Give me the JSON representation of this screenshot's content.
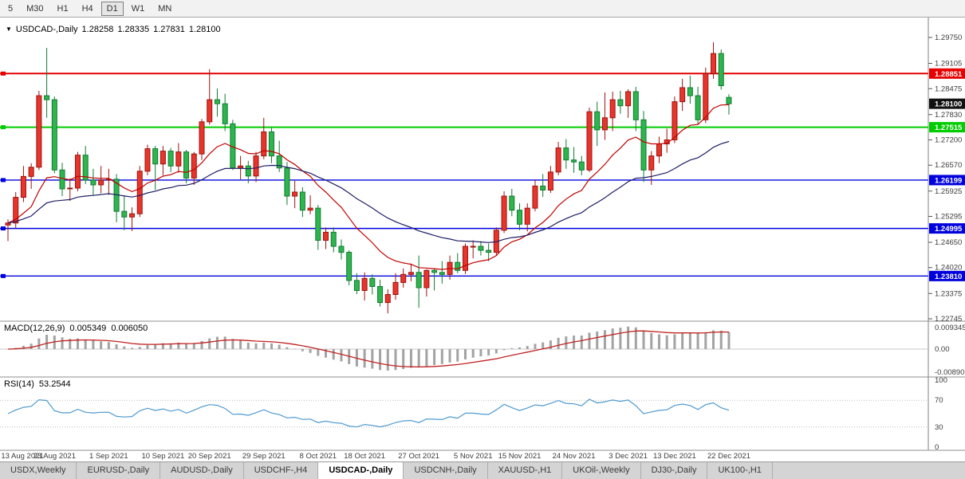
{
  "toolbar": {
    "timeframes": [
      {
        "label": "5",
        "active": false
      },
      {
        "label": "M30",
        "active": false
      },
      {
        "label": "H1",
        "active": false
      },
      {
        "label": "H4",
        "active": false
      },
      {
        "label": "D1",
        "active": true
      },
      {
        "label": "W1",
        "active": false
      },
      {
        "label": "MN",
        "active": false
      }
    ]
  },
  "header": {
    "collapse_icon": "▼",
    "symbol": "USDCAD-,Daily",
    "open": "1.28258",
    "high": "1.28335",
    "low": "1.27831",
    "close": "1.28100"
  },
  "price_scale": {
    "ticks": [
      "1.29750",
      "1.29105",
      "1.28475",
      "1.27830",
      "1.27200",
      "1.26570",
      "1.25925",
      "1.25295",
      "1.24650",
      "1.24020",
      "1.23375",
      "1.22745"
    ]
  },
  "price_lines": [
    {
      "value": "1.28851",
      "color": "#e60000",
      "width": 2
    },
    {
      "value": "1.27515",
      "color": "#00cc00",
      "width": 2
    },
    {
      "value": "1.26199",
      "color": "#0000dd",
      "width": 1.4
    },
    {
      "value": "1.24995",
      "color": "#0000dd",
      "width": 1.4
    },
    {
      "value": "1.23810",
      "color": "#0000dd",
      "width": 1.4
    }
  ],
  "current_price": {
    "value": "1.28100",
    "color": "#111111"
  },
  "indicators": {
    "macd": {
      "label": "MACD(12,26,9)",
      "value_main": "0.005349",
      "value_signal": "0.006050",
      "scale": [
        "0.0093450",
        "0.00",
        "-0.0089050"
      ],
      "params": {
        "fast": 12,
        "slow": 26,
        "signal": 9
      }
    },
    "rsi": {
      "label": "RSI(14)",
      "value": "53.2544",
      "scale": [
        "100",
        "70",
        "30",
        "0"
      ],
      "period": 14
    }
  },
  "chart_data": {
    "type": "candlestick",
    "symbol": "USDCAD",
    "timeframe": "Daily",
    "ylim": [
      1.22745,
      1.2975
    ],
    "colors": {
      "up": "#e8352b",
      "up_border": "#9c1410",
      "down": "#2fb54e",
      "down_border": "#117a33"
    },
    "ma": [
      {
        "period": 13,
        "color": "#c00000"
      },
      {
        "period": 34,
        "color": "#1d1d66"
      }
    ],
    "x_ticks": [
      {
        "index": 0,
        "label": "13 Aug 2021"
      },
      {
        "index": 6,
        "label": "23 Aug 2021"
      },
      {
        "index": 13,
        "label": "1 Sep 2021"
      },
      {
        "index": 20,
        "label": "10 Sep 2021"
      },
      {
        "index": 26,
        "label": "20 Sep 2021"
      },
      {
        "index": 33,
        "label": "29 Sep 2021"
      },
      {
        "index": 40,
        "label": "8 Oct 2021"
      },
      {
        "index": 46,
        "label": "18 Oct 2021"
      },
      {
        "index": 53,
        "label": "27 Oct 2021"
      },
      {
        "index": 60,
        "label": "5 Nov 2021"
      },
      {
        "index": 66,
        "label": "15 Nov 2021"
      },
      {
        "index": 73,
        "label": "24 Nov 2021"
      },
      {
        "index": 80,
        "label": "3 Dec 2021"
      },
      {
        "index": 86,
        "label": "13 Dec 2021"
      },
      {
        "index": 93,
        "label": "22 Dec 2021"
      }
    ],
    "candles": [
      [
        1.2508,
        1.2522,
        1.2468,
        1.2513
      ],
      [
        1.2513,
        1.259,
        1.25,
        1.2577
      ],
      [
        1.2577,
        1.2655,
        1.2565,
        1.2629
      ],
      [
        1.2629,
        1.2662,
        1.2598,
        1.2652
      ],
      [
        1.2652,
        1.2842,
        1.2645,
        1.283
      ],
      [
        1.283,
        1.2949,
        1.2775,
        1.282
      ],
      [
        1.282,
        1.2828,
        1.2637,
        1.2645
      ],
      [
        1.2645,
        1.2663,
        1.258,
        1.2598
      ],
      [
        1.2598,
        1.2624,
        1.2568,
        1.26
      ],
      [
        1.26,
        1.269,
        1.2592,
        1.2682
      ],
      [
        1.2682,
        1.2705,
        1.261,
        1.262
      ],
      [
        1.262,
        1.2648,
        1.2582,
        1.2608
      ],
      [
        1.2608,
        1.2655,
        1.2587,
        1.262
      ],
      [
        1.262,
        1.2648,
        1.2583,
        1.2622
      ],
      [
        1.2622,
        1.2635,
        1.2515,
        1.2542
      ],
      [
        1.2542,
        1.2582,
        1.2495,
        1.2528
      ],
      [
        1.2528,
        1.2552,
        1.2493,
        1.2536
      ],
      [
        1.2536,
        1.2655,
        1.2528,
        1.2642
      ],
      [
        1.2642,
        1.2708,
        1.2632,
        1.2698
      ],
      [
        1.2698,
        1.2705,
        1.2595,
        1.266
      ],
      [
        1.266,
        1.2705,
        1.2632,
        1.2692
      ],
      [
        1.2692,
        1.27,
        1.264,
        1.2655
      ],
      [
        1.2655,
        1.2712,
        1.2638,
        1.269
      ],
      [
        1.269,
        1.2695,
        1.2612,
        1.2625
      ],
      [
        1.2625,
        1.269,
        1.2608,
        1.2685
      ],
      [
        1.2685,
        1.2772,
        1.267,
        1.2765
      ],
      [
        1.2765,
        1.2896,
        1.2758,
        1.282
      ],
      [
        1.282,
        1.2848,
        1.2778,
        1.281
      ],
      [
        1.281,
        1.2835,
        1.2742,
        1.276
      ],
      [
        1.276,
        1.277,
        1.2645,
        1.265
      ],
      [
        1.265,
        1.268,
        1.2622,
        1.2655
      ],
      [
        1.2655,
        1.2668,
        1.2612,
        1.263
      ],
      [
        1.263,
        1.269,
        1.2615,
        1.268
      ],
      [
        1.268,
        1.2775,
        1.2672,
        1.274
      ],
      [
        1.274,
        1.275,
        1.2662,
        1.268
      ],
      [
        1.268,
        1.2718,
        1.264,
        1.265
      ],
      [
        1.265,
        1.2665,
        1.2558,
        1.258
      ],
      [
        1.258,
        1.2618,
        1.255,
        1.259
      ],
      [
        1.259,
        1.2602,
        1.2528,
        1.2545
      ],
      [
        1.2545,
        1.2582,
        1.2535,
        1.255
      ],
      [
        1.255,
        1.2558,
        1.2446,
        1.247
      ],
      [
        1.247,
        1.2502,
        1.2448,
        1.249
      ],
      [
        1.249,
        1.2502,
        1.244,
        1.2455
      ],
      [
        1.2455,
        1.2472,
        1.2422,
        1.244
      ],
      [
        1.244,
        1.2445,
        1.2358,
        1.237
      ],
      [
        1.237,
        1.2388,
        1.2336,
        1.2345
      ],
      [
        1.2345,
        1.239,
        1.232,
        1.2375
      ],
      [
        1.2375,
        1.2385,
        1.2335,
        1.2355
      ],
      [
        1.2355,
        1.2372,
        1.2305,
        1.2315
      ],
      [
        1.2315,
        1.2348,
        1.2288,
        1.2335
      ],
      [
        1.2335,
        1.2388,
        1.2322,
        1.2365
      ],
      [
        1.2365,
        1.24,
        1.2352,
        1.2385
      ],
      [
        1.2385,
        1.2412,
        1.2368,
        1.239
      ],
      [
        1.239,
        1.2432,
        1.2302,
        1.2352
      ],
      [
        1.2352,
        1.2398,
        1.233,
        1.2395
      ],
      [
        1.2395,
        1.24,
        1.2345,
        1.239
      ],
      [
        1.239,
        1.2418,
        1.2362,
        1.2385
      ],
      [
        1.2385,
        1.2432,
        1.2372,
        1.2415
      ],
      [
        1.2415,
        1.2438,
        1.2388,
        1.2395
      ],
      [
        1.2395,
        1.2462,
        1.2386,
        1.2455
      ],
      [
        1.2455,
        1.247,
        1.2425,
        1.2455
      ],
      [
        1.2455,
        1.2468,
        1.2432,
        1.2445
      ],
      [
        1.2445,
        1.2462,
        1.2418,
        1.244
      ],
      [
        1.244,
        1.2502,
        1.2432,
        1.2495
      ],
      [
        1.2495,
        1.2592,
        1.2488,
        1.258
      ],
      [
        1.258,
        1.2598,
        1.253,
        1.2545
      ],
      [
        1.2545,
        1.2562,
        1.2495,
        1.251
      ],
      [
        1.251,
        1.2562,
        1.2492,
        1.255
      ],
      [
        1.255,
        1.262,
        1.2542,
        1.2605
      ],
      [
        1.2605,
        1.2635,
        1.2578,
        1.2595
      ],
      [
        1.2595,
        1.2655,
        1.2588,
        1.264
      ],
      [
        1.264,
        1.2715,
        1.2632,
        1.27
      ],
      [
        1.27,
        1.2722,
        1.2648,
        1.267
      ],
      [
        1.267,
        1.2702,
        1.2638,
        1.2665
      ],
      [
        1.2665,
        1.268,
        1.2632,
        1.2645
      ],
      [
        1.2645,
        1.28,
        1.264,
        1.279
      ],
      [
        1.279,
        1.2815,
        1.2705,
        1.2745
      ],
      [
        1.2745,
        1.2838,
        1.272,
        1.2775
      ],
      [
        1.2775,
        1.284,
        1.2742,
        1.282
      ],
      [
        1.282,
        1.2842,
        1.2785,
        1.2805
      ],
      [
        1.2805,
        1.2846,
        1.2775,
        1.284
      ],
      [
        1.284,
        1.2852,
        1.2742,
        1.277
      ],
      [
        1.277,
        1.2792,
        1.2615,
        1.2645
      ],
      [
        1.2645,
        1.2692,
        1.2608,
        1.268
      ],
      [
        1.268,
        1.2728,
        1.2662,
        1.271
      ],
      [
        1.271,
        1.2748,
        1.2688,
        1.272
      ],
      [
        1.272,
        1.2828,
        1.2712,
        1.2815
      ],
      [
        1.2815,
        1.2872,
        1.2792,
        1.285
      ],
      [
        1.285,
        1.288,
        1.281,
        1.283
      ],
      [
        1.283,
        1.2852,
        1.2758,
        1.277
      ],
      [
        1.277,
        1.29,
        1.2762,
        1.2885
      ],
      [
        1.2885,
        1.2963,
        1.2872,
        1.2935
      ],
      [
        1.2935,
        1.2945,
        1.2845,
        1.2855
      ],
      [
        1.28258,
        1.28335,
        1.27831,
        1.281
      ]
    ]
  },
  "tabs": [
    {
      "label": "USDX,Weekly",
      "active": false
    },
    {
      "label": "EURUSD-,Daily",
      "active": false
    },
    {
      "label": "AUDUSD-,Daily",
      "active": false
    },
    {
      "label": "USDCHF-,H4",
      "active": false
    },
    {
      "label": "USDCAD-,Daily",
      "active": true
    },
    {
      "label": "USDCNH-,Daily",
      "active": false
    },
    {
      "label": "XAUUSD-,H1",
      "active": false
    },
    {
      "label": "UKOil-,Weekly",
      "active": false
    },
    {
      "label": "DJ30-,Daily",
      "active": false
    },
    {
      "label": "UK100-,H1",
      "active": false
    }
  ]
}
